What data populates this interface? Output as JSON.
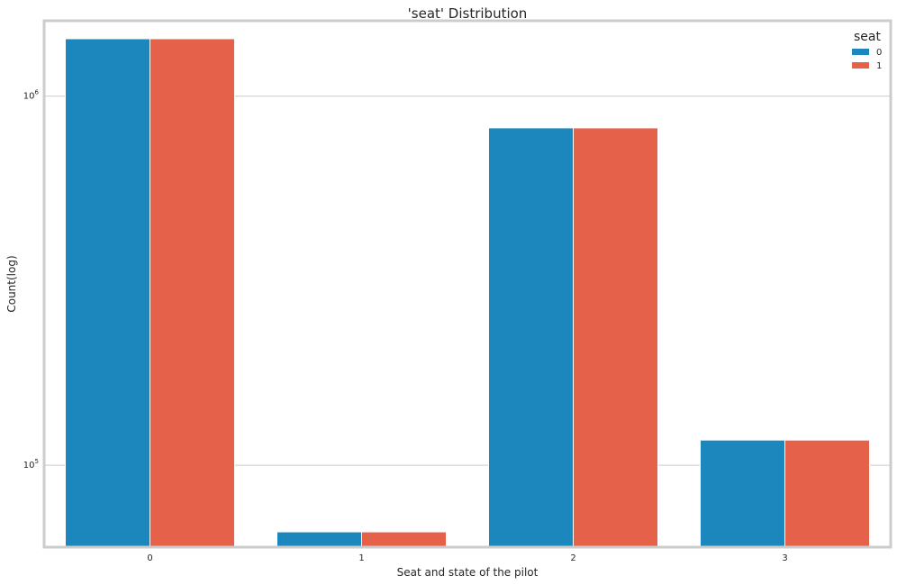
{
  "chart_data": {
    "type": "bar",
    "title": "'seat' Distribution",
    "xlabel": "Seat and state of the pilot",
    "ylabel": "Count(log)",
    "yscale": "log",
    "ylim": [
      60000,
      1600000
    ],
    "categories": [
      "0",
      "1",
      "2",
      "3"
    ],
    "y_ticks": [
      {
        "value": 100000,
        "base": "10",
        "exp": "5"
      },
      {
        "value": 1000000,
        "base": "10",
        "exp": "6"
      }
    ],
    "series": [
      {
        "name": "0",
        "color": "#1b87bd",
        "values": [
          1430000,
          66000,
          820000,
          117000
        ]
      },
      {
        "name": "1",
        "color": "#e5614a",
        "values": [
          1430000,
          66000,
          820000,
          117000
        ]
      }
    ],
    "legend": {
      "title": "seat",
      "placement": "top-right"
    },
    "grid": true
  }
}
